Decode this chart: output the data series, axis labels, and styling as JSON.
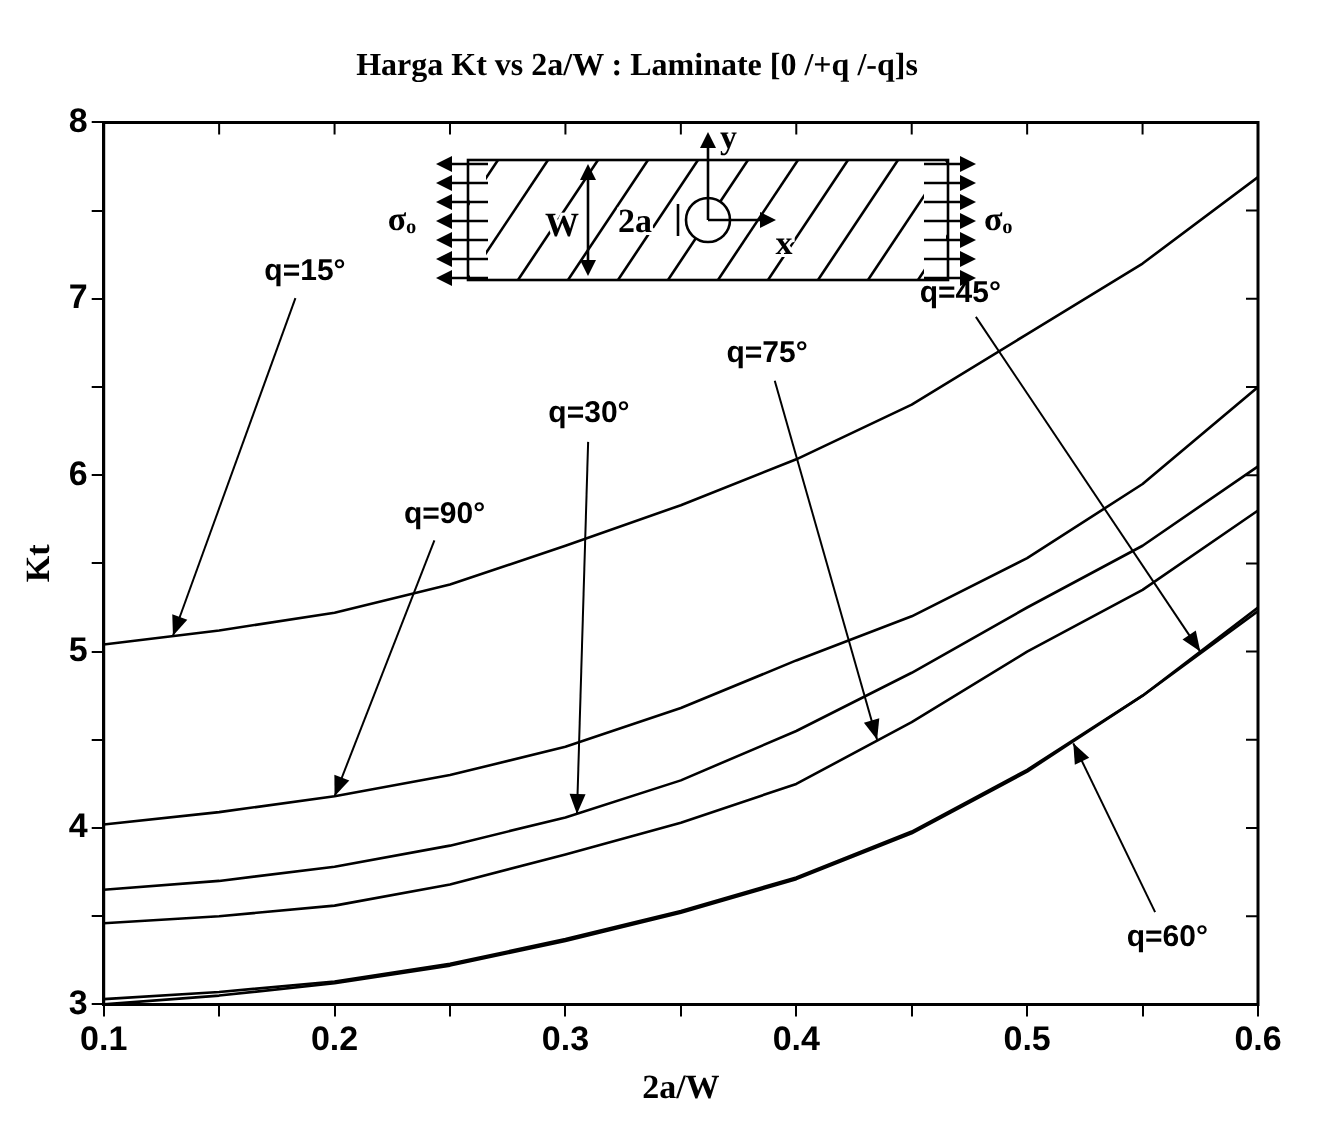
{
  "chart_data": {
    "type": "line",
    "title": "Harga Kt vs 2a/W : Laminate [0 /+q /-q]s",
    "xlabel": "2a/W",
    "ylabel": "Kt",
    "x": [
      0.1,
      0.15,
      0.2,
      0.25,
      0.3,
      0.35,
      0.4,
      0.45,
      0.5,
      0.55,
      0.6
    ],
    "series": [
      {
        "color": "#000000",
        "values": [
          5.04,
          5.12,
          5.22,
          5.38,
          5.6,
          5.83,
          6.09,
          6.4,
          6.8,
          7.2,
          7.69
        ]
      },
      {
        "color": "#000000",
        "values": [
          4.02,
          4.09,
          4.18,
          4.3,
          4.46,
          4.68,
          4.95,
          5.2,
          5.53,
          5.95,
          6.5
        ]
      },
      {
        "color": "#000000",
        "values": [
          3.65,
          3.7,
          3.78,
          3.9,
          4.06,
          4.27,
          4.55,
          4.88,
          5.25,
          5.6,
          6.05
        ]
      },
      {
        "color": "#000000",
        "values": [
          3.46,
          3.5,
          3.56,
          3.68,
          3.85,
          4.03,
          4.25,
          4.6,
          5.0,
          5.35,
          5.8
        ]
      },
      {
        "color": "#000000",
        "values": [
          3.03,
          3.07,
          3.13,
          3.23,
          3.37,
          3.53,
          3.72,
          3.98,
          4.33,
          4.75,
          5.25
        ]
      },
      {
        "color": "#000000",
        "values": [
          3.0,
          3.05,
          3.12,
          3.22,
          3.36,
          3.52,
          3.71,
          3.97,
          4.32,
          4.75,
          5.23
        ]
      }
    ],
    "xlim": [
      0.1,
      0.6
    ],
    "xticks": [
      0.1,
      {
        "value": 0.15,
        "label": null
      },
      0.2,
      {
        "value": 0.25,
        "label": null
      },
      0.3,
      {
        "value": 0.35,
        "label": null
      },
      0.4,
      {
        "value": 0.45,
        "label": null
      },
      0.5,
      {
        "value": 0.55,
        "label": null
      },
      0.6
    ],
    "ylim": [
      3,
      8
    ],
    "yticks": [
      3,
      {
        "value": 3.5,
        "label": null
      },
      4,
      {
        "value": 4.5,
        "label": null
      },
      5,
      {
        "value": 5.5,
        "label": null
      },
      6,
      {
        "value": 6.5,
        "label": null
      },
      7,
      {
        "value": 7.5,
        "label": null
      },
      8
    ],
    "grid": false,
    "legend": false,
    "marker": "none",
    "line_style": "solid",
    "annotations": [
      {
        "text": "q=15°",
        "x": 0.13,
        "y": 5.09
      },
      {
        "text": "q=90°",
        "x": 0.2,
        "y": 4.18
      },
      {
        "text": "q=30°",
        "x": 0.305,
        "y": 4.08
      },
      {
        "text": "q=75°",
        "x": 0.435,
        "y": 4.5
      },
      {
        "text": "q=45°",
        "x": 0.575,
        "y": 5.0
      },
      {
        "text": "q=60°",
        "x": 0.52,
        "y": 4.48
      },
      "σₒ",
      "σₒ",
      "W",
      "2a",
      "y",
      "x"
    ]
  }
}
